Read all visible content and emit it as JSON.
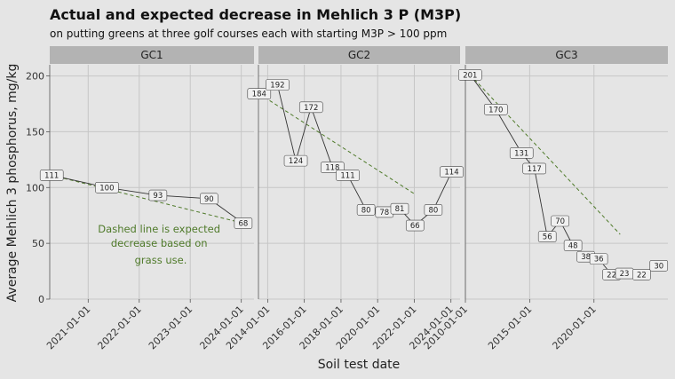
{
  "chart_data": {
    "type": "line",
    "title": "Actual and expected decrease in Mehlich 3 P (M3P)",
    "subtitle": "on putting greens at three golf courses each with starting M3P > 100 ppm",
    "xlabel": "Soil test date",
    "ylabel": "Average Mehlich 3 phosphorus, mg/kg",
    "ylim": [
      0,
      210
    ],
    "y_ticks": [
      "0",
      "50",
      "100",
      "150",
      "200"
    ],
    "grid": true,
    "annotation": "Dashed line is expected decrease based on grass use.",
    "colors": {
      "background": "#e5e5e5",
      "strip": "#b3b3b3",
      "grid": "#c6c6c6",
      "actual_line": "#333333",
      "expected_line": "#4f7a2a",
      "label_fill": "#f0f0f0"
    },
    "panels": [
      {
        "name": "GC1",
        "xlim": [
          "2020-04-01",
          "2024-04-01"
        ],
        "x_ticks": [
          "2021-01-01",
          "2022-01-01",
          "2023-01-01",
          "2024-01-01"
        ],
        "actual": [
          {
            "x": "2020-04-15",
            "y": 111
          },
          {
            "x": "2021-05-15",
            "y": 100
          },
          {
            "x": "2022-05-15",
            "y": 93
          },
          {
            "x": "2023-05-15",
            "y": 90
          },
          {
            "x": "2024-01-15",
            "y": 68
          }
        ],
        "expected": [
          {
            "x": "2020-04-15",
            "y": 111
          },
          {
            "x": "2024-01-15",
            "y": 68
          }
        ]
      },
      {
        "name": "GC2",
        "xlim": [
          "2013-07-01",
          "2024-07-01"
        ],
        "x_ticks": [
          "2014-01-01",
          "2016-01-01",
          "2018-01-01",
          "2020-01-01",
          "2022-01-01",
          "2024-01-01"
        ],
        "actual": [
          {
            "x": "2013-07-15",
            "y": 184
          },
          {
            "x": "2014-07-15",
            "y": 192
          },
          {
            "x": "2015-07-15",
            "y": 124
          },
          {
            "x": "2016-05-15",
            "y": 172
          },
          {
            "x": "2017-07-15",
            "y": 118
          },
          {
            "x": "2018-05-15",
            "y": 111
          },
          {
            "x": "2019-05-15",
            "y": 80
          },
          {
            "x": "2020-05-15",
            "y": 78
          },
          {
            "x": "2021-03-15",
            "y": 81
          },
          {
            "x": "2022-01-15",
            "y": 66
          },
          {
            "x": "2023-01-15",
            "y": 80
          },
          {
            "x": "2024-01-15",
            "y": 114
          }
        ],
        "expected": [
          {
            "x": "2013-07-15",
            "y": 184
          },
          {
            "x": "2022-01-15",
            "y": 94
          }
        ]
      },
      {
        "name": "GC3",
        "xlim": [
          "2010-01-01",
          "2025-10-01"
        ],
        "x_ticks": [
          "2010-01-01",
          "2015-01-01",
          "2020-01-01"
        ],
        "actual": [
          {
            "x": "2010-05-15",
            "y": 201
          },
          {
            "x": "2012-05-15",
            "y": 170
          },
          {
            "x": "2014-05-15",
            "y": 131
          },
          {
            "x": "2015-05-15",
            "y": 117
          },
          {
            "x": "2016-05-15",
            "y": 56
          },
          {
            "x": "2017-05-15",
            "y": 70
          },
          {
            "x": "2018-05-15",
            "y": 48
          },
          {
            "x": "2019-05-15",
            "y": 38
          },
          {
            "x": "2020-05-15",
            "y": 36
          },
          {
            "x": "2021-05-15",
            "y": 22
          },
          {
            "x": "2022-05-15",
            "y": 23
          },
          {
            "x": "2023-09-15",
            "y": 22
          },
          {
            "x": "2025-01-15",
            "y": 30
          }
        ],
        "expected": [
          {
            "x": "2010-05-15",
            "y": 201
          },
          {
            "x": "2022-01-15",
            "y": 58
          }
        ]
      }
    ]
  }
}
